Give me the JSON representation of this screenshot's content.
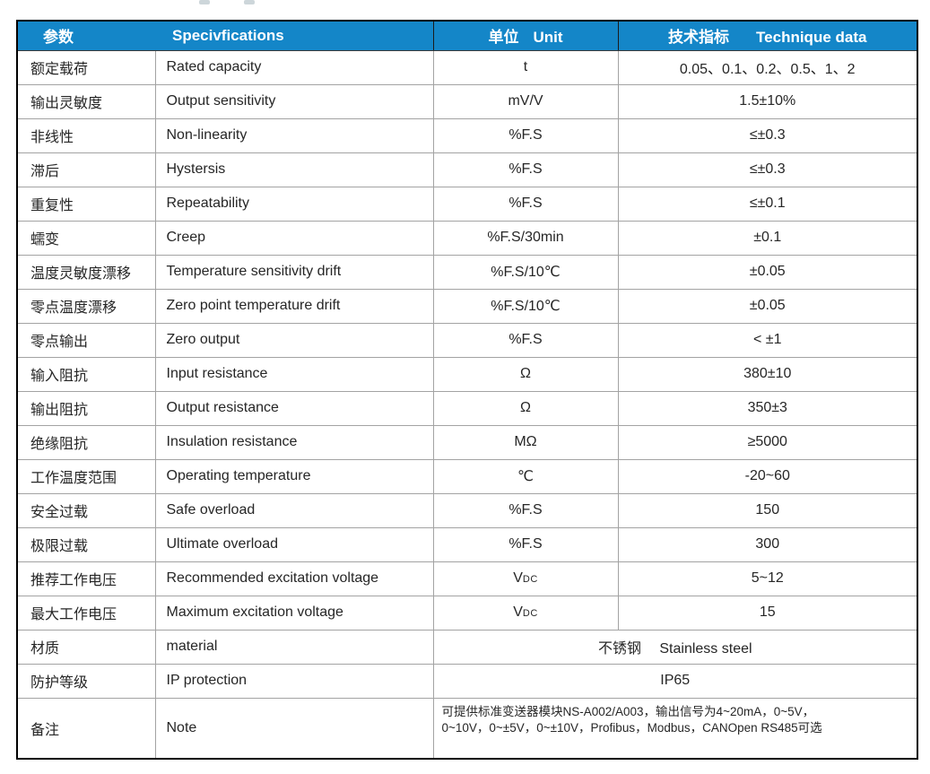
{
  "page": {
    "background": "#ffffff",
    "accent_color": "#1486c8",
    "grid_line_color": "#a3a3a3",
    "outer_border_color": "#000000"
  },
  "table": {
    "header": {
      "col1": {
        "zh": "参数",
        "en": ""
      },
      "col2": {
        "zh": "",
        "en": "Specivfications"
      },
      "col3": {
        "zh": "单位",
        "en": "Unit"
      },
      "col4": {
        "zh": "技术指标",
        "en": "Technique data"
      }
    },
    "rows": [
      {
        "zh": "额定载荷",
        "en": "Rated capacity",
        "unit": "t",
        "value": "0.05、0.1、0.2、0.5、1、2"
      },
      {
        "zh": "输出灵敏度",
        "en": "Output sensitivity",
        "unit": "mV/V",
        "value": "1.5±10%"
      },
      {
        "zh": "非线性",
        "en": "Non-linearity",
        "unit": "%F.S",
        "value": "≤±0.3"
      },
      {
        "zh": "滞后",
        "en": "Hystersis",
        "unit": "%F.S",
        "value": "≤±0.3"
      },
      {
        "zh": "重复性",
        "en": "Repeatability",
        "unit": "%F.S",
        "value": "≤±0.1"
      },
      {
        "zh": "蠕变",
        "en": "Creep",
        "unit": "%F.S/30min",
        "value": "±0.1"
      },
      {
        "zh": "温度灵敏度漂移",
        "en": "Temperature sensitivity drift",
        "unit": "%F.S/10℃",
        "value": "±0.05"
      },
      {
        "zh": "零点温度漂移",
        "en": "Zero point temperature drift",
        "unit": "%F.S/10℃",
        "value": "±0.05"
      },
      {
        "zh": "零点输出",
        "en": "Zero output",
        "unit": "%F.S",
        "value": "< ±1"
      },
      {
        "zh": "输入阻抗",
        "en": "Input resistance",
        "unit": "Ω",
        "value": "380±10"
      },
      {
        "zh": "输出阻抗",
        "en": "Output resistance",
        "unit": "Ω",
        "value": "350±3"
      },
      {
        "zh": "绝缘阻抗",
        "en": "Insulation resistance",
        "unit": "MΩ",
        "value": "≥5000"
      },
      {
        "zh": "工作温度范围",
        "en": "Operating temperature",
        "unit": "℃",
        "value": "-20~60"
      },
      {
        "zh": "安全过载",
        "en": "Safe overload",
        "unit": "%F.S",
        "value": "150"
      },
      {
        "zh": "极限过载",
        "en": "Ultimate overload",
        "unit": "%F.S",
        "value": "300"
      },
      {
        "zh": "推荐工作电压",
        "en": "Recommended excitation voltage",
        "unit": "V",
        "unit_sub": "DC",
        "value": "5~12"
      },
      {
        "zh": "最大工作电压",
        "en": "Maximum excitation voltage",
        "unit": "V",
        "unit_sub": "DC",
        "value": "15"
      },
      {
        "zh": "材质",
        "en": "material",
        "merged": true,
        "value": "不锈钢　 Stainless steel"
      },
      {
        "zh": "防护等级",
        "en": "IP protection",
        "merged": true,
        "value": "IP65"
      },
      {
        "zh": "备注",
        "en": "Note",
        "merged": true,
        "note": true,
        "value": "可提供标准变送器模块NS-A002/A003，输出信号为4~20mA，0~5V，\n0~10V，0~±5V，0~±10V，Profibus，Modbus，CANOpen RS485可选"
      }
    ]
  }
}
